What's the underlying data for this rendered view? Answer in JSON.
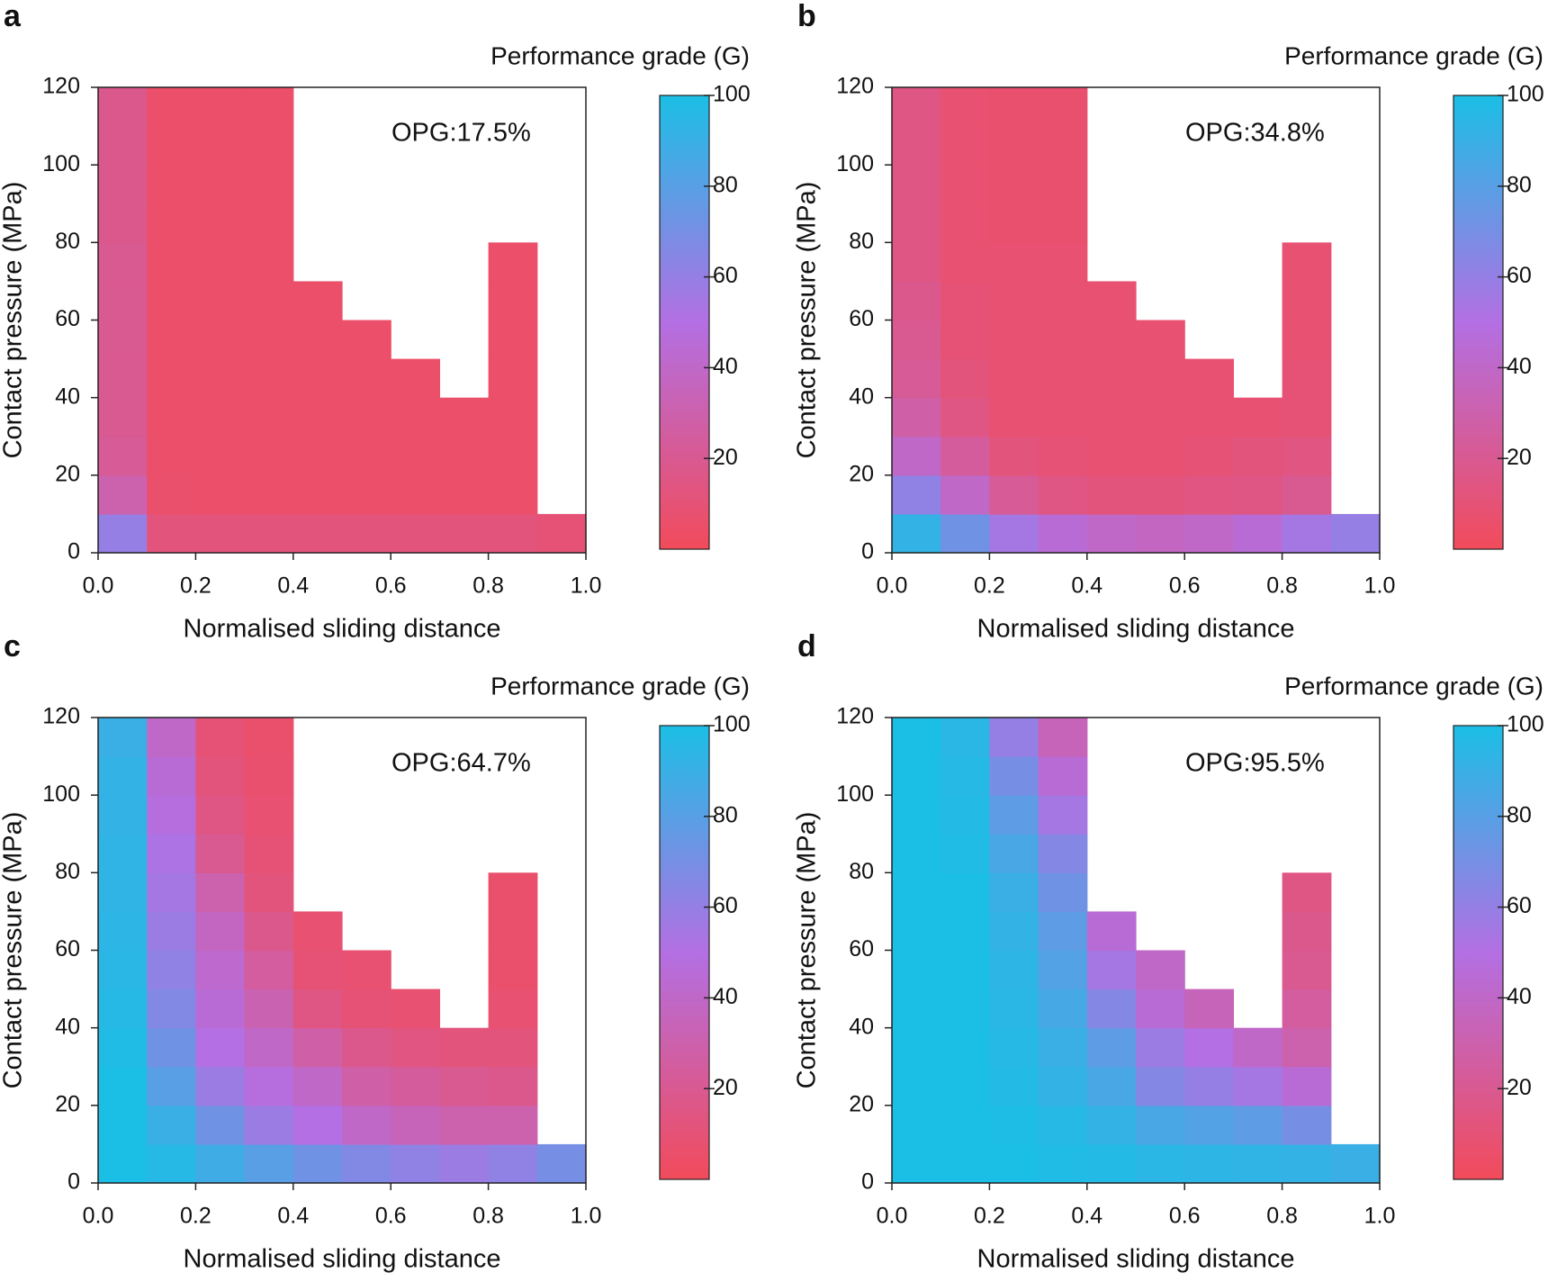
{
  "chart_data": [
    {
      "type": "heatmap",
      "panel_label": "a",
      "title": "Performance grade (G)",
      "annotation": "OPG:17.5%",
      "x_label": "Normalised sliding distance",
      "y_label": "Contact pressure (MPa)",
      "x": [
        0.05,
        0.15,
        0.25,
        0.35,
        0.45,
        0.55,
        0.65,
        0.75,
        0.85,
        0.95
      ],
      "y": [
        5,
        15,
        25,
        35,
        45,
        55,
        65,
        75,
        85,
        95,
        105,
        115
      ],
      "z": [
        [
          60,
          12,
          12,
          12,
          12,
          12,
          12,
          12,
          12,
          10
        ],
        [
          30,
          6,
          5,
          5,
          5,
          5,
          5,
          5,
          5,
          null
        ],
        [
          22,
          5,
          5,
          5,
          5,
          5,
          5,
          5,
          5,
          null
        ],
        [
          20,
          5,
          5,
          5,
          5,
          5,
          5,
          5,
          5,
          null
        ],
        [
          20,
          5,
          5,
          5,
          5,
          5,
          5,
          null,
          5,
          null
        ],
        [
          20,
          5,
          5,
          5,
          5,
          5,
          null,
          null,
          5,
          null
        ],
        [
          20,
          5,
          5,
          5,
          5,
          null,
          null,
          null,
          5,
          null
        ],
        [
          20,
          5,
          5,
          5,
          null,
          null,
          null,
          null,
          5,
          null
        ],
        [
          18,
          5,
          5,
          5,
          null,
          null,
          null,
          null,
          null,
          null
        ],
        [
          18,
          5,
          5,
          5,
          null,
          null,
          null,
          null,
          null,
          null
        ],
        [
          18,
          5,
          5,
          5,
          null,
          null,
          null,
          null,
          null,
          null
        ],
        [
          18,
          5,
          5,
          5,
          null,
          null,
          null,
          null,
          null,
          null
        ]
      ],
      "xlim": [
        0,
        1
      ],
      "xticks": [
        {
          "value": 0,
          "label": "0.0"
        },
        {
          "value": 0.2,
          "label": "0.2"
        },
        {
          "value": 0.4,
          "label": "0.4"
        },
        {
          "value": 0.6,
          "label": "0.6"
        },
        {
          "value": 0.8,
          "label": "0.8"
        },
        {
          "value": 1,
          "label": "1.0"
        }
      ],
      "ylim": [
        0,
        120
      ],
      "yticks": [
        0,
        20,
        40,
        60,
        80,
        100,
        120
      ],
      "colorbar_lim": [
        0,
        100
      ],
      "colorbar_ticks": [
        20,
        40,
        60,
        80,
        100
      ],
      "colors": [
        "#f24b5b",
        "#b36fe3",
        "#1bbfe6"
      ]
    },
    {
      "type": "heatmap",
      "panel_label": "b",
      "title": "Performance grade (G)",
      "annotation": "OPG:34.8%",
      "x_label": "Normalised sliding distance",
      "y_label": "Contact pressure (MPa)",
      "x": [
        0.05,
        0.15,
        0.25,
        0.35,
        0.45,
        0.55,
        0.65,
        0.75,
        0.85,
        0.95
      ],
      "y": [
        5,
        15,
        25,
        35,
        45,
        55,
        65,
        75,
        85,
        95,
        105,
        115
      ],
      "z": [
        [
          92,
          72,
          55,
          45,
          40,
          38,
          40,
          45,
          55,
          60
        ],
        [
          62,
          40,
          22,
          15,
          12,
          12,
          14,
          15,
          20,
          null
        ],
        [
          40,
          24,
          12,
          10,
          8,
          8,
          10,
          12,
          14,
          null
        ],
        [
          28,
          15,
          8,
          8,
          8,
          8,
          8,
          8,
          10,
          null
        ],
        [
          22,
          12,
          8,
          8,
          8,
          8,
          8,
          null,
          10,
          null
        ],
        [
          20,
          10,
          8,
          8,
          8,
          8,
          null,
          null,
          8,
          null
        ],
        [
          18,
          10,
          8,
          8,
          8,
          null,
          null,
          null,
          8,
          null
        ],
        [
          15,
          8,
          8,
          8,
          null,
          null,
          null,
          null,
          8,
          null
        ],
        [
          15,
          8,
          7,
          7,
          null,
          null,
          null,
          null,
          null,
          null
        ],
        [
          15,
          8,
          7,
          7,
          null,
          null,
          null,
          null,
          null,
          null
        ],
        [
          15,
          8,
          7,
          7,
          null,
          null,
          null,
          null,
          null,
          null
        ],
        [
          15,
          8,
          7,
          7,
          null,
          null,
          null,
          null,
          null,
          null
        ]
      ],
      "xlim": [
        0,
        1
      ],
      "xticks": [
        {
          "value": 0,
          "label": "0.0"
        },
        {
          "value": 0.2,
          "label": "0.2"
        },
        {
          "value": 0.4,
          "label": "0.4"
        },
        {
          "value": 0.6,
          "label": "0.6"
        },
        {
          "value": 0.8,
          "label": "0.8"
        },
        {
          "value": 1,
          "label": "1.0"
        }
      ],
      "ylim": [
        0,
        120
      ],
      "yticks": [
        0,
        20,
        40,
        60,
        80,
        100,
        120
      ],
      "colorbar_lim": [
        0,
        100
      ],
      "colorbar_ticks": [
        20,
        40,
        60,
        80,
        100
      ],
      "colors": [
        "#f24b5b",
        "#b36fe3",
        "#1bbfe6"
      ]
    },
    {
      "type": "heatmap",
      "panel_label": "c",
      "title": "Performance grade (G)",
      "annotation": "OPG:64.7%",
      "x_label": "Normalised sliding distance",
      "y_label": "Contact pressure (MPa)",
      "x": [
        0.05,
        0.15,
        0.25,
        0.35,
        0.45,
        0.55,
        0.65,
        0.75,
        0.85,
        0.95
      ],
      "y": [
        5,
        15,
        25,
        35,
        45,
        55,
        65,
        75,
        85,
        95,
        105,
        115
      ],
      "z": [
        [
          100,
          96,
          88,
          80,
          72,
          66,
          62,
          58,
          62,
          70
        ],
        [
          100,
          90,
          72,
          58,
          50,
          40,
          35,
          30,
          30,
          null
        ],
        [
          100,
          80,
          58,
          48,
          40,
          28,
          24,
          20,
          18,
          null
        ],
        [
          98,
          72,
          50,
          40,
          28,
          18,
          14,
          12,
          12,
          null
        ],
        [
          96,
          66,
          45,
          32,
          15,
          10,
          8,
          null,
          8,
          null
        ],
        [
          95,
          62,
          42,
          25,
          10,
          8,
          null,
          null,
          6,
          null
        ],
        [
          94,
          58,
          38,
          18,
          8,
          null,
          null,
          null,
          6,
          null
        ],
        [
          93,
          55,
          30,
          12,
          null,
          null,
          null,
          null,
          6,
          null
        ],
        [
          93,
          52,
          20,
          10,
          null,
          null,
          null,
          null,
          null,
          null
        ],
        [
          92,
          48,
          15,
          8,
          null,
          null,
          null,
          null,
          null,
          null
        ],
        [
          92,
          45,
          12,
          7,
          null,
          null,
          null,
          null,
          null,
          null
        ],
        [
          90,
          40,
          10,
          6,
          null,
          null,
          null,
          null,
          null,
          null
        ]
      ],
      "xlim": [
        0,
        1
      ],
      "xticks": [
        {
          "value": 0,
          "label": "0.0"
        },
        {
          "value": 0.2,
          "label": "0.2"
        },
        {
          "value": 0.4,
          "label": "0.4"
        },
        {
          "value": 0.6,
          "label": "0.6"
        },
        {
          "value": 0.8,
          "label": "0.8"
        },
        {
          "value": 1,
          "label": "1.0"
        }
      ],
      "ylim": [
        0,
        120
      ],
      "yticks": [
        0,
        20,
        40,
        60,
        80,
        100,
        120
      ],
      "colorbar_lim": [
        0,
        100
      ],
      "colorbar_ticks": [
        20,
        40,
        60,
        80,
        100
      ],
      "colors": [
        "#f24b5b",
        "#b36fe3",
        "#1bbfe6"
      ]
    },
    {
      "type": "heatmap",
      "panel_label": "d",
      "title": "Performance grade (G)",
      "annotation": "OPG:95.5%",
      "x_label": "Normalised sliding distance",
      "y_label": "Contact pressure (MPa)",
      "x": [
        0.05,
        0.15,
        0.25,
        0.35,
        0.45,
        0.55,
        0.65,
        0.75,
        0.85,
        0.95
      ],
      "y": [
        5,
        15,
        25,
        35,
        45,
        55,
        65,
        75,
        85,
        95,
        105,
        115
      ],
      "z": [
        [
          100,
          100,
          100,
          98,
          97,
          95,
          94,
          93,
          92,
          90
        ],
        [
          100,
          100,
          99,
          96,
          92,
          85,
          82,
          78,
          70,
          null
        ],
        [
          100,
          100,
          97,
          92,
          85,
          65,
          60,
          55,
          45,
          null
        ],
        [
          100,
          100,
          96,
          90,
          78,
          58,
          50,
          40,
          30,
          null
        ],
        [
          100,
          100,
          95,
          86,
          65,
          45,
          35,
          null,
          25,
          null
        ],
        [
          100,
          100,
          94,
          82,
          55,
          40,
          null,
          null,
          20,
          null
        ],
        [
          100,
          100,
          92,
          78,
          45,
          null,
          null,
          null,
          18,
          null
        ],
        [
          100,
          100,
          90,
          72,
          null,
          null,
          null,
          null,
          15,
          null
        ],
        [
          100,
          98,
          85,
          65,
          null,
          null,
          null,
          null,
          null,
          null
        ],
        [
          100,
          97,
          78,
          55,
          null,
          null,
          null,
          null,
          null,
          null
        ],
        [
          100,
          96,
          70,
          45,
          null,
          null,
          null,
          null,
          null,
          null
        ],
        [
          100,
          95,
          60,
          35,
          null,
          null,
          null,
          null,
          null,
          null
        ]
      ],
      "xlim": [
        0,
        1
      ],
      "xticks": [
        {
          "value": 0,
          "label": "0.0"
        },
        {
          "value": 0.2,
          "label": "0.2"
        },
        {
          "value": 0.4,
          "label": "0.4"
        },
        {
          "value": 0.6,
          "label": "0.6"
        },
        {
          "value": 0.8,
          "label": "0.8"
        },
        {
          "value": 1,
          "label": "1.0"
        }
      ],
      "ylim": [
        0,
        120
      ],
      "yticks": [
        0,
        20,
        40,
        60,
        80,
        100,
        120
      ],
      "colorbar_lim": [
        0,
        100
      ],
      "colorbar_ticks": [
        20,
        40,
        60,
        80,
        100
      ],
      "colors": [
        "#f24b5b",
        "#b36fe3",
        "#1bbfe6"
      ]
    }
  ]
}
